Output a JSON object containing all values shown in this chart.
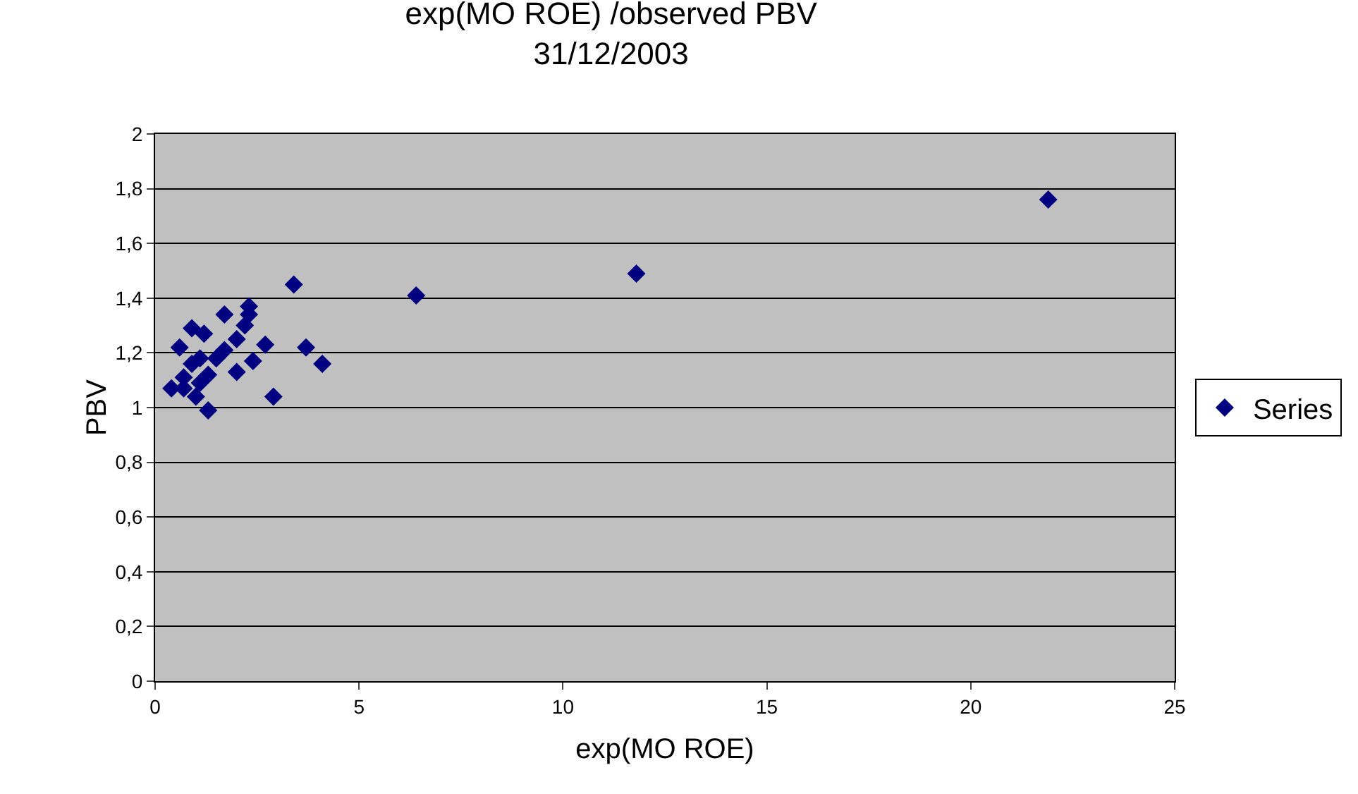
{
  "chart_data": {
    "type": "scatter",
    "title": "exp(MO ROE) /observed PBV\n31/12/2003",
    "xlabel": "exp(MO ROE)",
    "ylabel": "PBV",
    "x": [
      21.9,
      11.8,
      6.4,
      3.4,
      3.7,
      4.1,
      2.9,
      2.7,
      0.4,
      1.3,
      1.7,
      2.3,
      2.3,
      2.4,
      0.6,
      0.9,
      1.2,
      2.0,
      2.0,
      1.0,
      0.7,
      1.1,
      1.5,
      0.9,
      1.7,
      2.2,
      1.1,
      1.3,
      0.7
    ],
    "series": [
      {
        "name": "Series",
        "color": "#000080",
        "values": [
          1.76,
          1.49,
          1.41,
          1.45,
          1.22,
          1.16,
          1.04,
          1.23,
          1.07,
          0.99,
          1.34,
          1.37,
          1.34,
          1.17,
          1.22,
          1.29,
          1.27,
          1.25,
          1.13,
          1.04,
          1.11,
          1.18,
          1.18,
          1.16,
          1.21,
          1.3,
          1.09,
          1.12,
          1.07
        ]
      }
    ],
    "xlim": [
      0,
      25
    ],
    "xticks": [
      0,
      5,
      10,
      15,
      20,
      25
    ],
    "ylim": [
      0,
      2
    ],
    "yticks": [
      0,
      {
        "value": 0.2,
        "label": "0,2"
      },
      {
        "value": 0.4,
        "label": "0,4"
      },
      {
        "value": 0.6,
        "label": "0,6"
      },
      {
        "value": 0.8,
        "label": "0,8"
      },
      1,
      {
        "value": 1.2,
        "label": "1,2"
      },
      {
        "value": 1.4,
        "label": "1,4"
      },
      {
        "value": 1.6,
        "label": "1,6"
      },
      {
        "value": 1.8,
        "label": "1,8"
      },
      2
    ],
    "grid": "y",
    "legend": "right",
    "marker": "diamond"
  }
}
